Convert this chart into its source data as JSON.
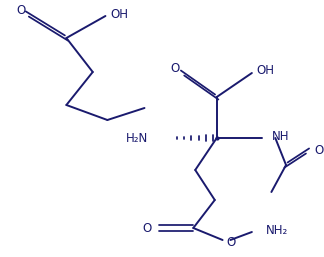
{
  "background_color": "#ffffff",
  "line_color": "#1a1a6e",
  "text_color": "#1a1a6e",
  "line_width": 1.4,
  "font_size": 8.5,
  "figsize": [
    3.24,
    2.57
  ],
  "dpi": 100,
  "xlim": [
    0,
    324
  ],
  "ylim": [
    0,
    257
  ]
}
